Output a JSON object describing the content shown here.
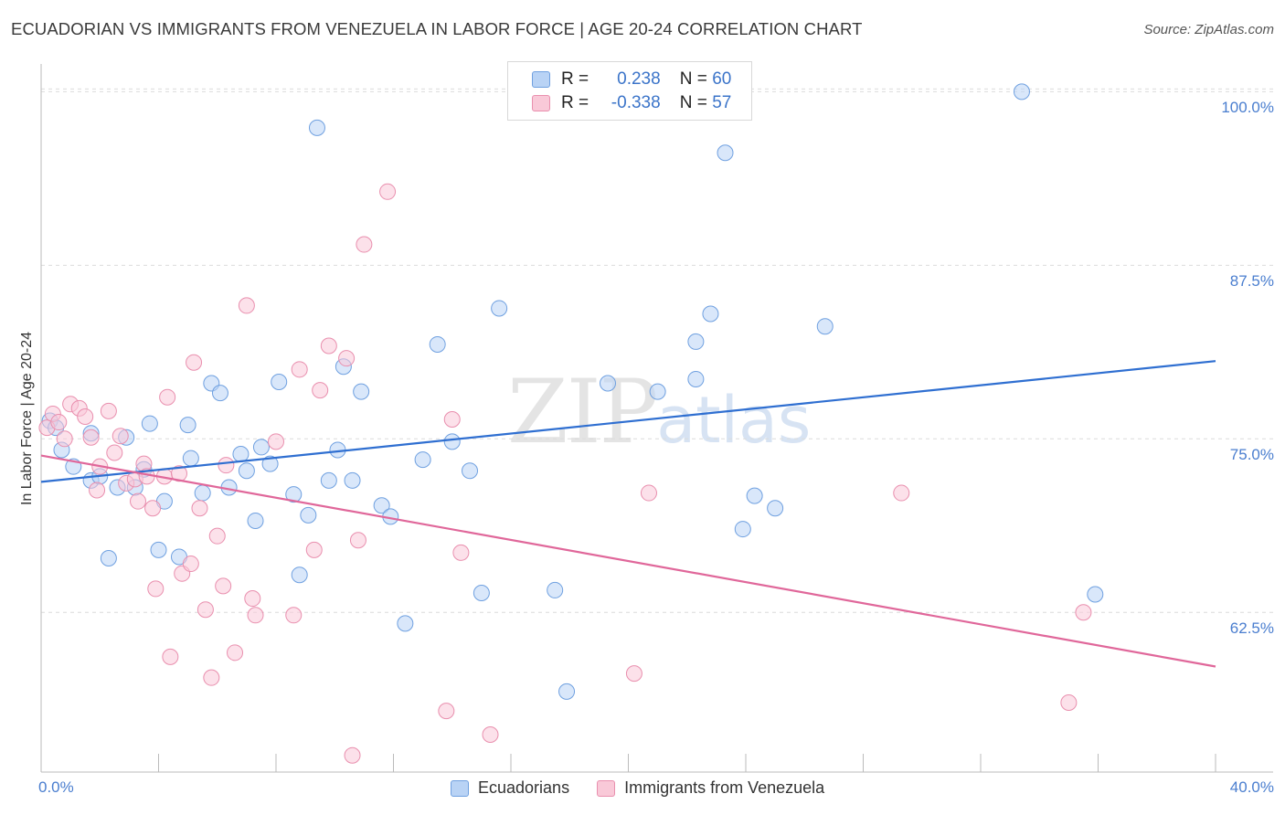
{
  "title": "ECUADORIAN VS IMMIGRANTS FROM VENEZUELA IN LABOR FORCE | AGE 20-24 CORRELATION CHART",
  "source": "Source: ZipAtlas.com",
  "watermark": {
    "zip": "ZIP",
    "atlas": "atlas"
  },
  "legend": {
    "r_label": "R =",
    "n_label": "N =",
    "rows": [
      {
        "r": "0.238",
        "n": "60",
        "color": "#6fa0e0"
      },
      {
        "r": "-0.338",
        "n": "57",
        "color": "#e98fae"
      }
    ]
  },
  "bottom_legend": [
    "Ecuadorians",
    "Immigrants from Venezuela"
  ],
  "chart_data": {
    "type": "scatter",
    "title": "ECUADORIAN VS IMMIGRANTS FROM VENEZUELA IN LABOR FORCE | AGE 20-24 CORRELATION CHART",
    "xlabel": "",
    "ylabel": "In Labor Force | Age 20-24",
    "xlim": [
      0,
      40
    ],
    "ylim": [
      51,
      102
    ],
    "x_tick_labels": [
      "0.0%",
      "40.0%"
    ],
    "y_ticks": [
      62.5,
      75.0,
      87.5,
      100.0
    ],
    "y_tick_labels": [
      "62.5%",
      "75.0%",
      "87.5%",
      "100.0%"
    ],
    "grid": true,
    "series": [
      {
        "name": "Ecuadorians",
        "color": "#6fa0e0",
        "fill": "#b9d3f5",
        "trend": {
          "x": [
            0,
            40
          ],
          "y": [
            71.9,
            80.6
          ]
        },
        "points": [
          [
            0.3,
            76.3
          ],
          [
            0.5,
            75.8
          ],
          [
            0.7,
            74.2
          ],
          [
            1.1,
            73.0
          ],
          [
            1.7,
            75.4
          ],
          [
            1.7,
            72.0
          ],
          [
            2.0,
            72.3
          ],
          [
            2.3,
            66.4
          ],
          [
            2.6,
            71.5
          ],
          [
            2.9,
            75.1
          ],
          [
            3.2,
            71.5
          ],
          [
            3.5,
            72.8
          ],
          [
            3.7,
            76.1
          ],
          [
            4.0,
            67.0
          ],
          [
            4.2,
            70.5
          ],
          [
            4.7,
            66.5
          ],
          [
            5.0,
            76.0
          ],
          [
            5.1,
            73.6
          ],
          [
            5.5,
            71.1
          ],
          [
            5.8,
            79.0
          ],
          [
            6.1,
            78.3
          ],
          [
            6.4,
            71.5
          ],
          [
            6.8,
            73.9
          ],
          [
            7.0,
            72.7
          ],
          [
            7.3,
            69.1
          ],
          [
            7.5,
            74.4
          ],
          [
            7.8,
            73.2
          ],
          [
            8.1,
            79.1
          ],
          [
            8.6,
            71.0
          ],
          [
            8.8,
            65.2
          ],
          [
            9.1,
            69.5
          ],
          [
            9.4,
            97.4
          ],
          [
            9.8,
            72.0
          ],
          [
            10.1,
            74.2
          ],
          [
            10.3,
            80.2
          ],
          [
            10.6,
            72.0
          ],
          [
            10.9,
            78.4
          ],
          [
            11.6,
            70.2
          ],
          [
            11.9,
            69.4
          ],
          [
            12.4,
            61.7
          ],
          [
            13.0,
            73.5
          ],
          [
            13.5,
            81.8
          ],
          [
            14.0,
            74.8
          ],
          [
            14.6,
            72.7
          ],
          [
            15.0,
            63.9
          ],
          [
            15.6,
            84.4
          ],
          [
            17.5,
            64.1
          ],
          [
            17.9,
            56.8
          ],
          [
            19.3,
            79.0
          ],
          [
            21.0,
            78.4
          ],
          [
            22.3,
            82.0
          ],
          [
            22.3,
            79.3
          ],
          [
            22.8,
            84.0
          ],
          [
            23.3,
            95.6
          ],
          [
            23.9,
            68.5
          ],
          [
            24.3,
            70.9
          ],
          [
            25.0,
            70.0
          ],
          [
            26.7,
            83.1
          ],
          [
            33.4,
            100.0
          ],
          [
            35.9,
            63.8
          ]
        ]
      },
      {
        "name": "Immigrants from Venezuela",
        "color": "#e98fae",
        "fill": "#f9c9d8",
        "trend": {
          "x": [
            0,
            40
          ],
          "y": [
            73.8,
            58.6
          ]
        },
        "points": [
          [
            0.2,
            75.8
          ],
          [
            0.4,
            76.8
          ],
          [
            0.6,
            76.2
          ],
          [
            0.8,
            75.0
          ],
          [
            1.0,
            77.5
          ],
          [
            1.3,
            77.2
          ],
          [
            1.5,
            76.6
          ],
          [
            1.7,
            75.1
          ],
          [
            1.9,
            71.3
          ],
          [
            2.0,
            73.0
          ],
          [
            2.3,
            77.0
          ],
          [
            2.5,
            74.0
          ],
          [
            2.7,
            75.2
          ],
          [
            2.9,
            71.8
          ],
          [
            3.2,
            72.1
          ],
          [
            3.3,
            70.5
          ],
          [
            3.5,
            73.2
          ],
          [
            3.6,
            72.3
          ],
          [
            3.8,
            70.0
          ],
          [
            3.9,
            64.2
          ],
          [
            4.2,
            72.3
          ],
          [
            4.3,
            78.0
          ],
          [
            4.4,
            59.3
          ],
          [
            4.7,
            72.5
          ],
          [
            4.8,
            65.3
          ],
          [
            5.1,
            66.0
          ],
          [
            5.2,
            80.5
          ],
          [
            5.4,
            70.0
          ],
          [
            5.6,
            62.7
          ],
          [
            5.8,
            57.8
          ],
          [
            6.0,
            68.0
          ],
          [
            6.2,
            64.4
          ],
          [
            6.3,
            73.1
          ],
          [
            6.6,
            59.6
          ],
          [
            7.0,
            84.6
          ],
          [
            7.2,
            63.5
          ],
          [
            7.3,
            62.3
          ],
          [
            8.0,
            74.8
          ],
          [
            8.6,
            62.3
          ],
          [
            8.8,
            80.0
          ],
          [
            9.3,
            67.0
          ],
          [
            9.5,
            78.5
          ],
          [
            9.8,
            81.7
          ],
          [
            10.4,
            80.8
          ],
          [
            10.6,
            52.2
          ],
          [
            11.0,
            89.0
          ],
          [
            10.8,
            67.7
          ],
          [
            11.8,
            92.8
          ],
          [
            13.8,
            55.4
          ],
          [
            14.0,
            76.4
          ],
          [
            14.3,
            66.8
          ],
          [
            15.3,
            53.7
          ],
          [
            20.2,
            58.1
          ],
          [
            20.7,
            71.1
          ],
          [
            29.3,
            71.1
          ],
          [
            35.0,
            56.0
          ],
          [
            35.5,
            62.5
          ]
        ]
      }
    ]
  }
}
